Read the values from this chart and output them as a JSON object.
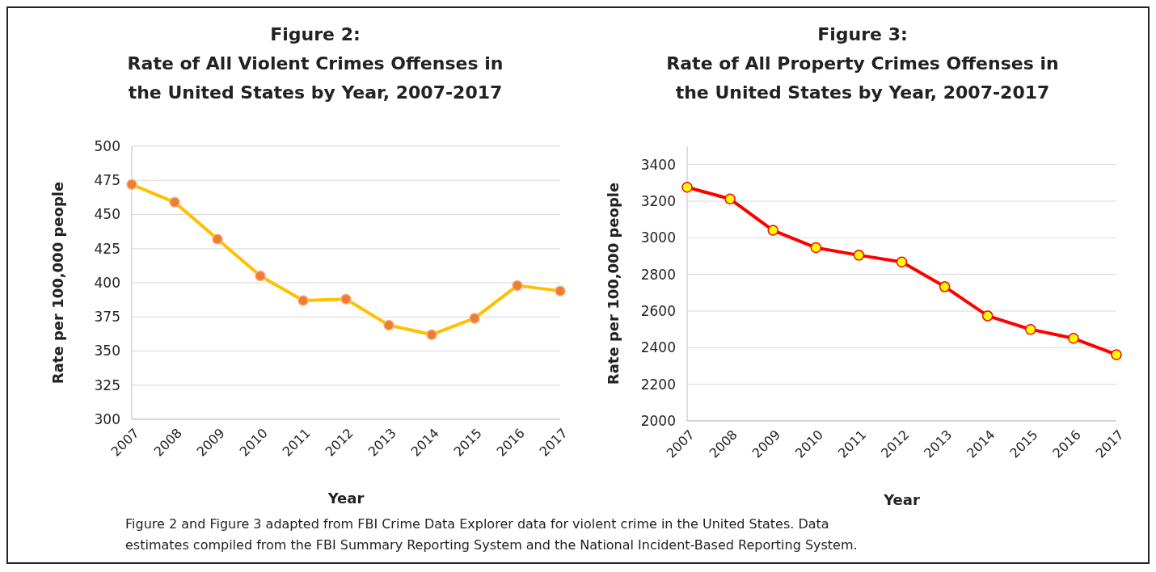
{
  "chart_data": [
    {
      "type": "line",
      "title": "Figure 2:",
      "subtitle": "Rate of All Violent Crimes Offenses in the United States by Year, 2007-2017",
      "xlabel": "Year",
      "ylabel": "Rate per 100,000 people",
      "categories": [
        "2007",
        "2008",
        "2009",
        "2010",
        "2011",
        "2012",
        "2013",
        "2014",
        "2015",
        "2016",
        "2017"
      ],
      "series": [
        {
          "color": "#ffc000",
          "colors": [
            "#ed7d31",
            "#ed7d31",
            "#ed7d31",
            "#ed7d31",
            "#ed7d31",
            "#ed7d31",
            "#ed7d31",
            "#ed7d31",
            "#ed7d31",
            "#ed7d31",
            "#ed7d31"
          ],
          "values": [
            472,
            459,
            432,
            405,
            387,
            388,
            369,
            362,
            374,
            398,
            394
          ]
        }
      ],
      "ylim": [
        300,
        500
      ],
      "yticks": [
        300,
        325,
        350,
        375,
        400,
        425,
        450,
        475,
        500
      ],
      "grid": "y",
      "marker": "circle",
      "line_style": "solid"
    },
    {
      "type": "line",
      "title": "Figure 3:",
      "subtitle": "Rate of All Property Crimes Offenses in the United States by Year, 2007-2017",
      "xlabel": "Year",
      "ylabel": "Rate per 100,000 people",
      "categories": [
        "2007",
        "2008",
        "2009",
        "2010",
        "2011",
        "2012",
        "2013",
        "2014",
        "2015",
        "2016",
        "2017"
      ],
      "series": [
        {
          "color": "#ff0000",
          "colors": [
            "#ffff00",
            "#ffff00",
            "#ffff00",
            "#ffff00",
            "#ffff00",
            "#ffff00",
            "#ffff00",
            "#ffff00",
            "#ffff00",
            "#ffff00",
            "#ffff00"
          ],
          "values": [
            3276,
            3212,
            3041,
            2946,
            2905,
            2868,
            2733,
            2574,
            2500,
            2451,
            2362
          ]
        }
      ],
      "ylim": [
        2000,
        3500
      ],
      "yticks": [
        2000,
        2200,
        2400,
        2600,
        2800,
        3000,
        3200,
        3400
      ],
      "grid": "y",
      "marker": "circle",
      "line_style": "solid",
      "annotations": [
        "Figure 2 and Figure 3 adapted from FBI Crime Data Explorer data for violent crime in the United States. Data estimates compiled from the FBI Summary Reporting System and the National Incident-Based Reporting System."
      ]
    }
  ]
}
